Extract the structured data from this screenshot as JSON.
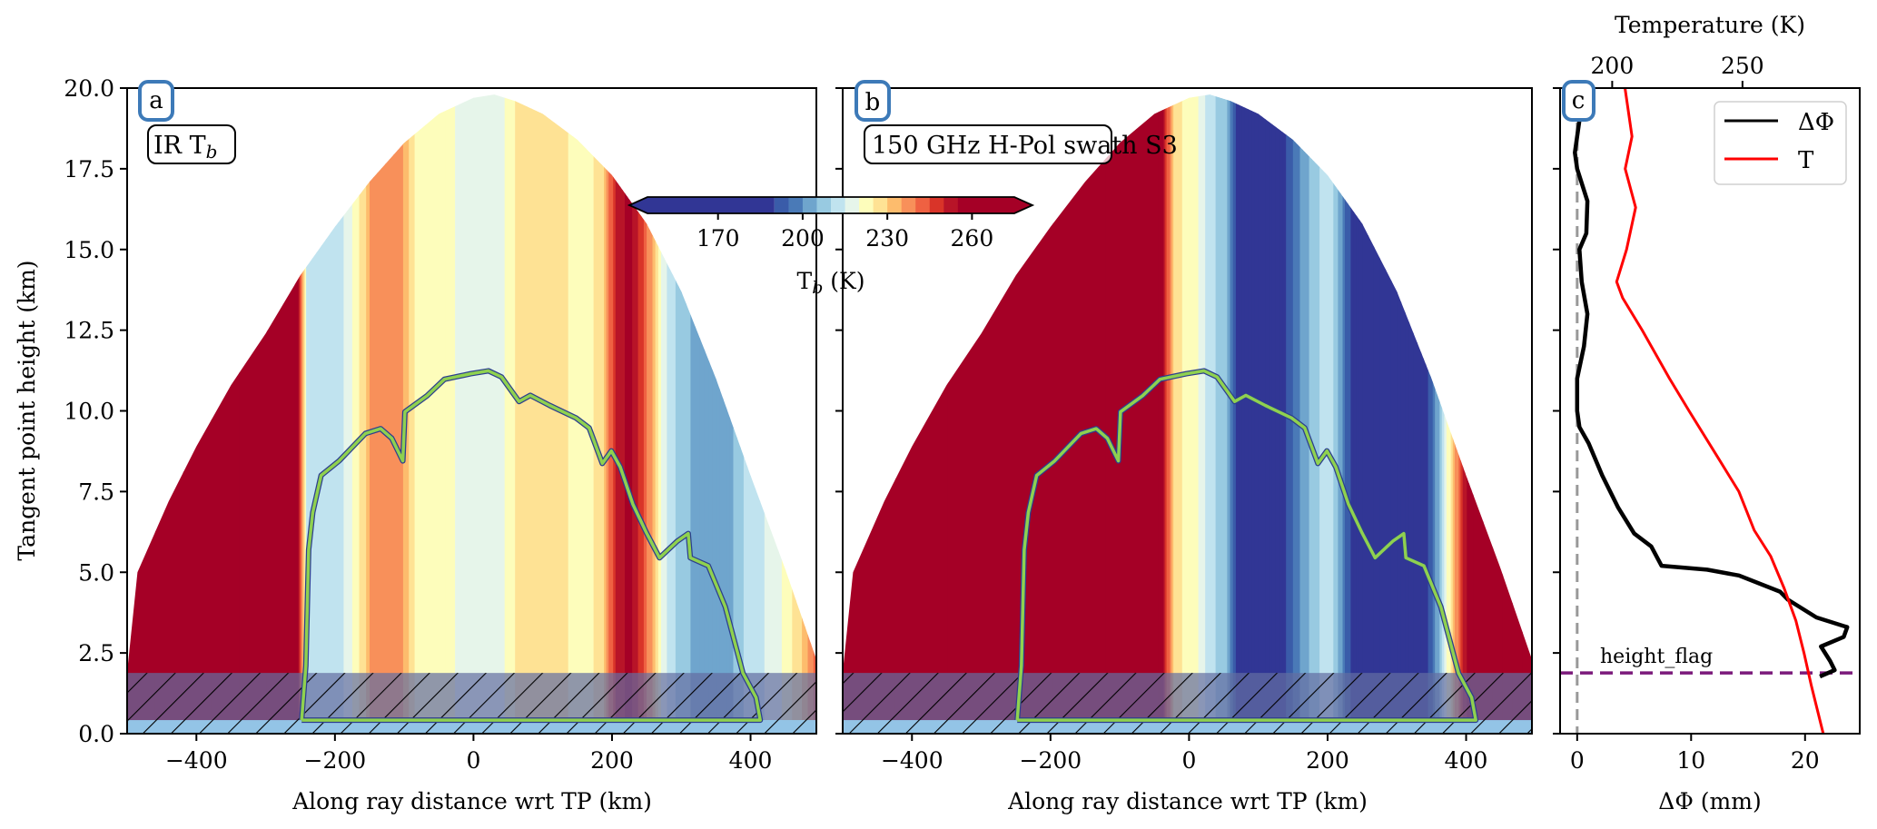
{
  "figure": {
    "colorbar": {
      "label_main": "T",
      "label_sub": "b",
      "label_unit": " (K)",
      "ticks": [
        170,
        200,
        230,
        260
      ],
      "range": [
        145,
        275
      ],
      "levels": [
        190,
        195,
        200,
        205,
        210,
        215,
        220,
        225,
        230,
        235,
        240,
        245,
        250,
        255
      ],
      "colors": [
        "#313695",
        "#3a5ca9",
        "#4a7ab7",
        "#6fa5cd",
        "#98cae1",
        "#c0e3ef",
        "#e6f5ea",
        "#fdfdbb",
        "#fee294",
        "#fdbc6d",
        "#f8905a",
        "#ef6142",
        "#d93429",
        "#b81428",
        "#a50026"
      ],
      "extend": "both"
    }
  },
  "chart_data": [
    {
      "type": "heatmap",
      "panel": "a",
      "panel_letter": "a",
      "title_main": "IR T",
      "title_sub": "b",
      "xlabel": "Along ray distance wrt TP (km)",
      "ylabel": "Tangent point height (km)",
      "xlim": [
        -500,
        495
      ],
      "ylim": [
        0,
        20
      ],
      "xticks": [
        -400,
        -200,
        0,
        200,
        400
      ],
      "xtick_labels": [
        "−400",
        "−200",
        "0",
        "200",
        "400"
      ],
      "yticks": [
        0,
        2.5,
        5,
        7.5,
        10,
        12.5,
        15,
        17.5,
        20
      ],
      "ytick_labels": [
        "0.0",
        "2.5",
        "5.0",
        "7.5",
        "10.0",
        "12.5",
        "15.0",
        "17.5",
        "20.0"
      ],
      "field_stripes_Tb": [
        [
          -500,
          270
        ],
        [
          -258,
          270
        ],
        [
          -250,
          246
        ],
        [
          -240,
          212
        ],
        [
          -200,
          210
        ],
        [
          -175,
          220
        ],
        [
          -145,
          237
        ],
        [
          -110,
          240
        ],
        [
          -85,
          224
        ],
        [
          -40,
          221
        ],
        [
          0,
          218
        ],
        [
          40,
          219
        ],
        [
          70,
          228
        ],
        [
          110,
          230
        ],
        [
          150,
          222
        ],
        [
          185,
          226
        ],
        [
          205,
          250
        ],
        [
          225,
          258
        ],
        [
          250,
          242
        ],
        [
          275,
          216
        ],
        [
          300,
          207
        ],
        [
          340,
          200
        ],
        [
          370,
          204
        ],
        [
          400,
          212
        ],
        [
          440,
          219
        ],
        [
          470,
          228
        ],
        [
          495,
          242
        ]
      ],
      "dome_boundary": [
        [
          -500,
          1.9
        ],
        [
          -485,
          5.0
        ],
        [
          -440,
          7.2
        ],
        [
          -400,
          8.9
        ],
        [
          -350,
          10.8
        ],
        [
          -300,
          12.4
        ],
        [
          -250,
          14.2
        ],
        [
          -200,
          15.7
        ],
        [
          -150,
          17.1
        ],
        [
          -100,
          18.3
        ],
        [
          -50,
          19.2
        ],
        [
          0,
          19.7
        ],
        [
          30,
          19.8
        ],
        [
          60,
          19.6
        ],
        [
          100,
          19.2
        ],
        [
          150,
          18.4
        ],
        [
          200,
          17.3
        ],
        [
          250,
          15.8
        ],
        [
          300,
          13.7
        ],
        [
          350,
          11.0
        ],
        [
          400,
          8.0
        ],
        [
          450,
          5.1
        ],
        [
          495,
          2.3
        ]
      ],
      "cloud_contour": [
        [
          -248,
          0.42
        ],
        [
          -242,
          2.1
        ],
        [
          -238,
          5.7
        ],
        [
          -232,
          6.85
        ],
        [
          -220,
          8.0
        ],
        [
          -194,
          8.45
        ],
        [
          -156,
          9.3
        ],
        [
          -134,
          9.45
        ],
        [
          -118,
          9.15
        ],
        [
          -102,
          8.45
        ],
        [
          -99,
          9.97
        ],
        [
          -67,
          10.47
        ],
        [
          -42,
          10.98
        ],
        [
          -4,
          11.15
        ],
        [
          21.6,
          11.24
        ],
        [
          40.5,
          11.05
        ],
        [
          65.8,
          10.29
        ],
        [
          82,
          10.48
        ],
        [
          110,
          10.17
        ],
        [
          148,
          9.78
        ],
        [
          167,
          9.47
        ],
        [
          186,
          8.37
        ],
        [
          199,
          8.76
        ],
        [
          212,
          8.26
        ],
        [
          230,
          7.11
        ],
        [
          250,
          6.21
        ],
        [
          268.6,
          5.45
        ],
        [
          294,
          5.96
        ],
        [
          310,
          6.2
        ],
        [
          313,
          5.45
        ],
        [
          339,
          5.2
        ],
        [
          363.5,
          3.93
        ],
        [
          389,
          1.88
        ],
        [
          408,
          1.12
        ],
        [
          414,
          0.42
        ],
        [
          -248,
          0.42
        ]
      ],
      "height_flag_km": 1.88,
      "surface_band_km": 0.42
    },
    {
      "type": "heatmap",
      "panel": "b",
      "panel_letter": "b",
      "title_main": "150 GHz H-Pol swath S3",
      "xlabel": "Along ray distance wrt TP (km)",
      "xlim": [
        -500,
        495
      ],
      "ylim": [
        0,
        20
      ],
      "xticks": [
        -400,
        -200,
        0,
        200,
        400
      ],
      "xtick_labels": [
        "−400",
        "−200",
        "0",
        "200",
        "400"
      ],
      "yticks": [
        0,
        2.5,
        5,
        7.5,
        10,
        12.5,
        15,
        17.5,
        20
      ],
      "field_stripes_Tb": [
        [
          -500,
          270
        ],
        [
          -45,
          270
        ],
        [
          -35,
          250
        ],
        [
          -20,
          226
        ],
        [
          10,
          222
        ],
        [
          30,
          212
        ],
        [
          55,
          205
        ],
        [
          80,
          178
        ],
        [
          110,
          176
        ],
        [
          140,
          190
        ],
        [
          160,
          200
        ],
        [
          180,
          208
        ],
        [
          205,
          214
        ],
        [
          225,
          196
        ],
        [
          250,
          176
        ],
        [
          300,
          175
        ],
        [
          335,
          180
        ],
        [
          355,
          198
        ],
        [
          375,
          222
        ],
        [
          392,
          245
        ],
        [
          410,
          268
        ],
        [
          495,
          270
        ]
      ],
      "dome_boundary": [
        [
          -500,
          1.9
        ],
        [
          -485,
          5.0
        ],
        [
          -440,
          7.2
        ],
        [
          -400,
          8.9
        ],
        [
          -350,
          10.8
        ],
        [
          -300,
          12.4
        ],
        [
          -250,
          14.2
        ],
        [
          -200,
          15.7
        ],
        [
          -150,
          17.1
        ],
        [
          -100,
          18.3
        ],
        [
          -50,
          19.2
        ],
        [
          0,
          19.7
        ],
        [
          30,
          19.8
        ],
        [
          60,
          19.6
        ],
        [
          100,
          19.2
        ],
        [
          150,
          18.4
        ],
        [
          200,
          17.3
        ],
        [
          250,
          15.8
        ],
        [
          300,
          13.7
        ],
        [
          350,
          11.0
        ],
        [
          400,
          8.0
        ],
        [
          450,
          5.1
        ],
        [
          495,
          2.3
        ]
      ],
      "cloud_contour": [
        [
          -248,
          0.42
        ],
        [
          -242,
          2.1
        ],
        [
          -238,
          5.7
        ],
        [
          -232,
          6.85
        ],
        [
          -220,
          8.0
        ],
        [
          -194,
          8.45
        ],
        [
          -156,
          9.3
        ],
        [
          -134,
          9.45
        ],
        [
          -118,
          9.15
        ],
        [
          -102,
          8.45
        ],
        [
          -99,
          9.97
        ],
        [
          -67,
          10.47
        ],
        [
          -42,
          10.98
        ],
        [
          -4,
          11.15
        ],
        [
          21.6,
          11.24
        ],
        [
          40.5,
          11.05
        ],
        [
          65.8,
          10.29
        ],
        [
          82,
          10.48
        ],
        [
          110,
          10.17
        ],
        [
          148,
          9.78
        ],
        [
          167,
          9.47
        ],
        [
          186,
          8.37
        ],
        [
          199,
          8.76
        ],
        [
          212,
          8.26
        ],
        [
          230,
          7.11
        ],
        [
          250,
          6.21
        ],
        [
          268.6,
          5.45
        ],
        [
          294,
          5.96
        ],
        [
          310,
          6.2
        ],
        [
          313,
          5.45
        ],
        [
          339,
          5.2
        ],
        [
          363.5,
          3.93
        ],
        [
          389,
          1.88
        ],
        [
          408,
          1.12
        ],
        [
          414,
          0.42
        ],
        [
          -248,
          0.42
        ]
      ],
      "height_flag_km": 1.88,
      "surface_band_km": 0.42
    },
    {
      "type": "line",
      "panel": "c",
      "panel_letter": "c",
      "xlabel": "ΔΦ (mm)",
      "xlabel_top": "Temperature (K)",
      "xlim": [
        -1.5,
        24.8
      ],
      "xticks": [
        0,
        10,
        20
      ],
      "xtick_labels": [
        "0",
        "10",
        "20"
      ],
      "xlim_top": [
        180,
        295
      ],
      "xticks_top": [
        200,
        250
      ],
      "xtick_labels_top": [
        "200",
        "250"
      ],
      "ylim": [
        0,
        20
      ],
      "yticks": [
        0,
        2.5,
        5,
        7.5,
        10,
        12.5,
        15,
        17.5,
        20
      ],
      "legend": {
        "position": "top-right",
        "entries": [
          "ΔΦ",
          "T"
        ]
      },
      "annotation": "height_flag",
      "height_flag_km": 1.88,
      "zero_line_x": 0,
      "series": [
        {
          "name": "ΔΦ",
          "color": "#000000",
          "axis": "bottom",
          "points": [
            [
              0.2,
              19.0
            ],
            [
              -0.2,
              18.0
            ],
            [
              0.0,
              17.5
            ],
            [
              0.9,
              16.5
            ],
            [
              0.8,
              15.5
            ],
            [
              0.2,
              15.0
            ],
            [
              0.4,
              14.0
            ],
            [
              0.9,
              13.0
            ],
            [
              0.6,
              12.0
            ],
            [
              0.0,
              11.0
            ],
            [
              0.0,
              10.0
            ],
            [
              0.2,
              9.5
            ],
            [
              1.0,
              9.0
            ],
            [
              2.2,
              8.0
            ],
            [
              3.6,
              7.0
            ],
            [
              5.0,
              6.2
            ],
            [
              6.5,
              5.8
            ],
            [
              7.4,
              5.2
            ],
            [
              11.4,
              5.08
            ],
            [
              14.2,
              4.9
            ],
            [
              17.8,
              4.4
            ],
            [
              18.5,
              4.15
            ],
            [
              21.0,
              3.6
            ],
            [
              23.7,
              3.3
            ],
            [
              23.4,
              3.0
            ],
            [
              21.4,
              2.7
            ],
            [
              22.2,
              2.25
            ],
            [
              22.6,
              1.97
            ],
            [
              21.3,
              1.77
            ]
          ]
        },
        {
          "name": "T",
          "color": "#ff0000",
          "axis": "top",
          "points": [
            [
              204.9,
              20.0
            ],
            [
              207.6,
              18.5
            ],
            [
              205.0,
              17.5
            ],
            [
              209.0,
              16.3
            ],
            [
              205.5,
              15.0
            ],
            [
              201.7,
              14.0
            ],
            [
              204.0,
              13.5
            ],
            [
              211.5,
              12.5
            ],
            [
              222.0,
              11.0
            ],
            [
              229.5,
              10.0
            ],
            [
              241.0,
              8.5
            ],
            [
              248.6,
              7.5
            ],
            [
              254.5,
              6.3
            ],
            [
              260.8,
              5.5
            ],
            [
              266.0,
              4.5
            ],
            [
              270.5,
              3.5
            ],
            [
              273.6,
              2.5
            ],
            [
              276.4,
              1.5
            ],
            [
              281.0,
              0.0
            ]
          ]
        }
      ]
    }
  ]
}
